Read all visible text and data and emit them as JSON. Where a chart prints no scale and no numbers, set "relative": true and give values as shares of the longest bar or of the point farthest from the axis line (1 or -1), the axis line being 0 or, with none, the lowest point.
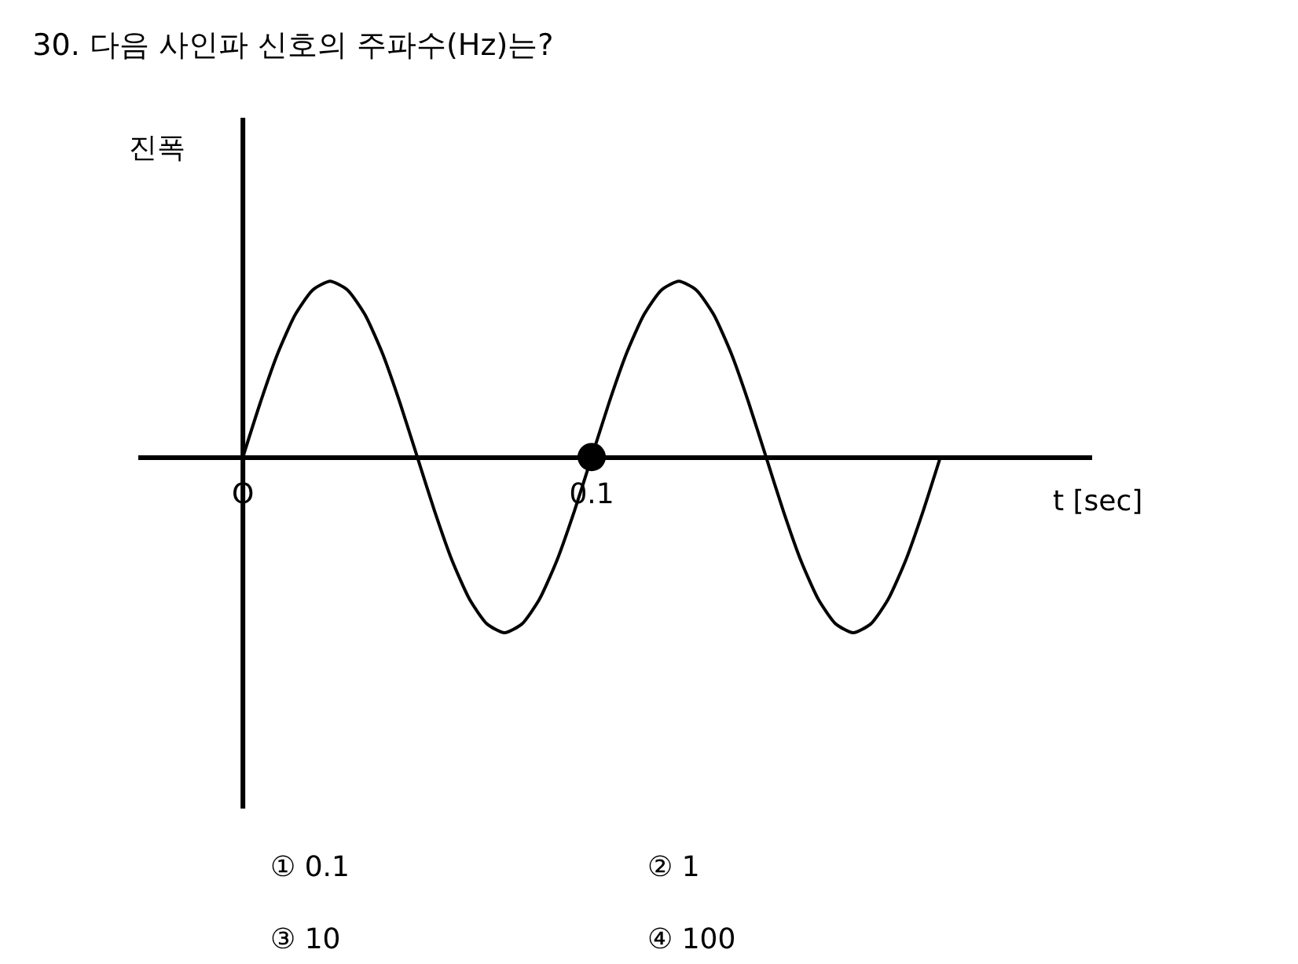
{
  "chart_data": {
    "type": "line",
    "title": "30. 다음 사인파 신호의 주파수(Hz)는?",
    "xlabel": "t [sec]",
    "ylabel": "진폭",
    "relative": true,
    "categories": [
      "O",
      null,
      null,
      null,
      null,
      null,
      null,
      null,
      null,
      null,
      null,
      null,
      null,
      null,
      null,
      null,
      null,
      null,
      null,
      null,
      "0.1",
      null,
      null,
      null,
      null,
      null,
      null,
      null,
      null,
      null,
      null,
      null,
      null,
      null,
      null,
      null,
      null,
      null,
      null,
      null,
      null
    ],
    "tick_labels": "x",
    "marker": "none",
    "series": [
      {
        "color": "#000000",
        "values": [
          0,
          0.31,
          0.59,
          0.81,
          0.95,
          1,
          0.95,
          0.81,
          0.59,
          0.31,
          0,
          -0.31,
          -0.59,
          -0.81,
          -0.95,
          -1,
          -0.95,
          -0.81,
          -0.59,
          -0.31,
          0,
          0.31,
          0.59,
          0.81,
          0.95,
          1,
          0.95,
          0.81,
          0.59,
          0.31,
          0,
          -0.31,
          -0.59,
          -0.81,
          -0.95,
          -1,
          -0.95,
          -0.81,
          -0.59,
          -0.31,
          0
        ]
      },
      {
        "type": "scatter",
        "color": "#000000",
        "marker": "circle",
        "values": [
          null,
          null,
          null,
          null,
          null,
          null,
          null,
          null,
          null,
          null,
          null,
          null,
          null,
          null,
          null,
          null,
          null,
          null,
          null,
          null,
          0,
          null,
          null,
          null,
          null,
          null,
          null,
          null,
          null,
          null,
          null,
          null,
          null,
          null,
          null,
          null,
          null,
          null,
          null,
          null,
          null
        ]
      }
    ],
    "annotations": [
      "① 0.1",
      "② 1",
      "③ 10",
      "④ 100"
    ]
  }
}
